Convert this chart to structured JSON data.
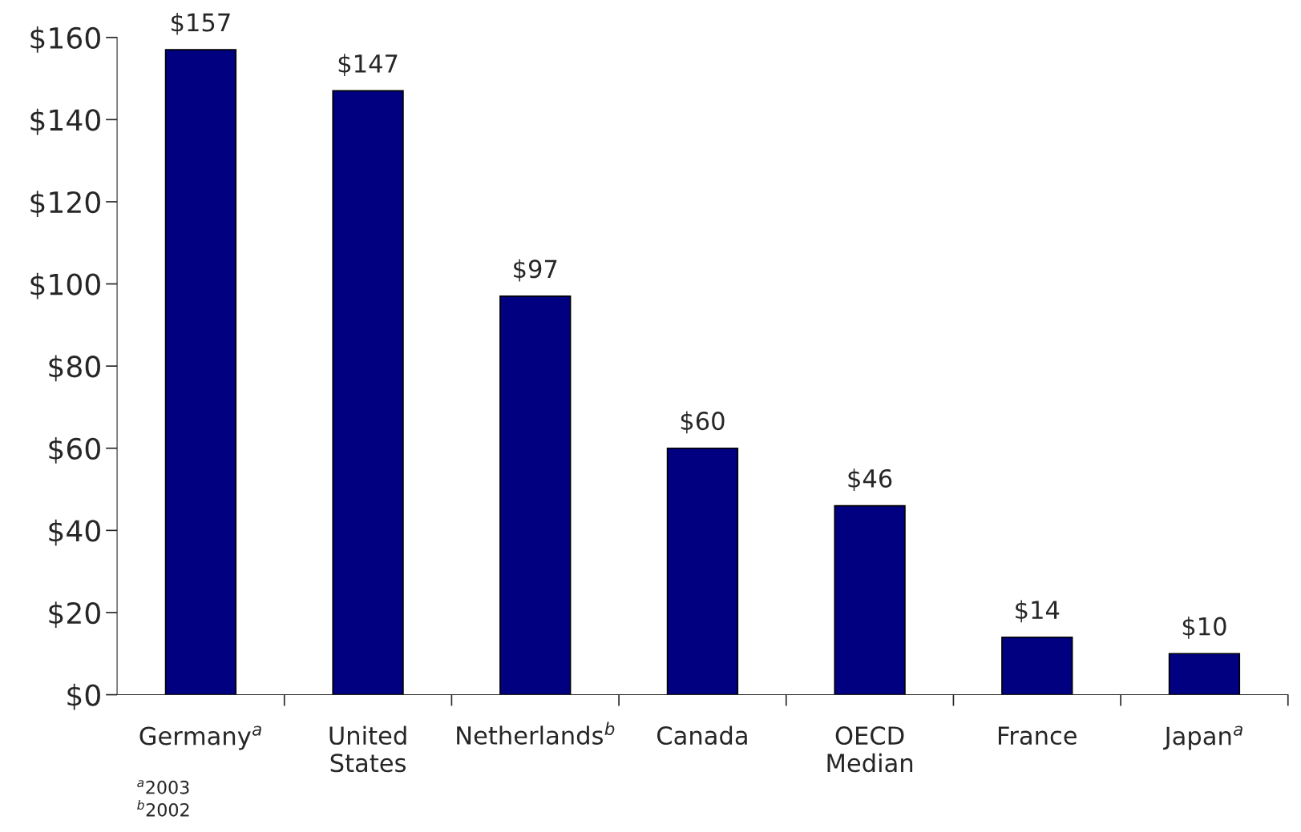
{
  "chart_data": {
    "type": "bar",
    "categories": [
      "Germany$^{a}$",
      "United\nStates",
      "Netherlands$^{b}$",
      "Canada",
      "OECD\nMedian",
      "France",
      "Japan$^{a}$"
    ],
    "values": [
      157,
      147,
      97,
      60,
      46,
      14,
      10
    ],
    "value_labels": [
      "$157",
      "$147",
      "$97",
      "$60",
      "$46",
      "$14",
      "$10"
    ],
    "color": "#000080",
    "ylim": [
      0,
      160
    ],
    "yticks": [
      {
        "value": 0,
        "label": "$0"
      },
      {
        "value": 20,
        "label": "$20"
      },
      {
        "value": 40,
        "label": "$40"
      },
      {
        "value": 60,
        "label": "$60"
      },
      {
        "value": 80,
        "label": "$80"
      },
      {
        "value": 100,
        "label": "$100"
      },
      {
        "value": 120,
        "label": "$120"
      },
      {
        "value": 140,
        "label": "$140"
      },
      {
        "value": 160,
        "label": "$160"
      }
    ],
    "grid": false,
    "legend": false,
    "annotations": [
      "$^{a}$2003",
      "$^{b}$2002"
    ]
  }
}
